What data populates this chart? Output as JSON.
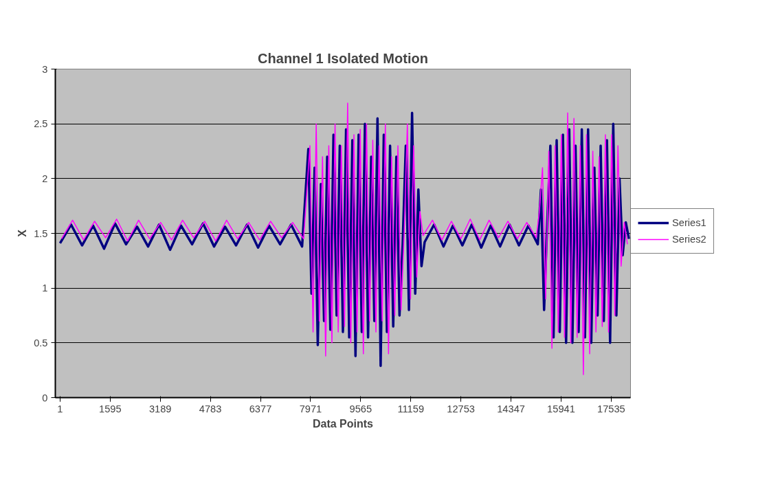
{
  "chart_data": {
    "type": "line",
    "title": "Channel 1 Isolated Motion",
    "xlabel": "Data Points",
    "ylabel": "X",
    "xlim": [
      -150,
      18150
    ],
    "xticks": [
      1,
      1595,
      3189,
      4783,
      6377,
      7971,
      9565,
      11159,
      12753,
      14347,
      15941,
      17535
    ],
    "ylim": [
      0,
      3
    ],
    "yticks": [
      0,
      0.5,
      1,
      1.5,
      2,
      2.5,
      3
    ],
    "grid": "y",
    "legend": "right",
    "marker": "none",
    "line_style": "solid",
    "series": [
      {
        "name": "Series1",
        "color": "#000080",
        "x": [
          1,
          351,
          701,
          1051,
          1401,
          1751,
          2101,
          2451,
          2801,
          3151,
          3501,
          3851,
          4201,
          4551,
          4901,
          5251,
          5601,
          5951,
          6301,
          6651,
          7001,
          7351,
          7701,
          7900,
          8000,
          8100,
          8200,
          8300,
          8400,
          8500,
          8600,
          8700,
          8800,
          8900,
          9000,
          9100,
          9200,
          9300,
          9400,
          9500,
          9600,
          9700,
          9800,
          9900,
          10000,
          10100,
          10200,
          10300,
          10400,
          10500,
          10600,
          10700,
          10800,
          10900,
          11000,
          11100,
          11200,
          11300,
          11400,
          11500,
          11600,
          11900,
          12200,
          12500,
          12800,
          13100,
          13400,
          13700,
          14000,
          14300,
          14600,
          14900,
          15200,
          15300,
          15400,
          15500,
          15600,
          15700,
          15800,
          15900,
          16000,
          16100,
          16200,
          16300,
          16400,
          16500,
          16600,
          16700,
          16800,
          16900,
          17000,
          17100,
          17200,
          17300,
          17400,
          17500,
          17600,
          17700,
          17800,
          17900,
          18000,
          18100
        ],
        "values": [
          1.41,
          1.58,
          1.39,
          1.57,
          1.36,
          1.59,
          1.4,
          1.56,
          1.38,
          1.58,
          1.35,
          1.57,
          1.4,
          1.59,
          1.38,
          1.56,
          1.39,
          1.58,
          1.37,
          1.57,
          1.4,
          1.58,
          1.38,
          2.27,
          0.95,
          2.1,
          0.48,
          1.95,
          0.7,
          2.2,
          0.62,
          2.4,
          0.75,
          2.3,
          0.6,
          2.45,
          0.55,
          2.35,
          0.38,
          2.4,
          0.6,
          2.5,
          0.55,
          2.2,
          0.7,
          2.55,
          0.29,
          2.4,
          0.6,
          2.3,
          0.65,
          2.2,
          0.75,
          1.4,
          2.3,
          0.8,
          2.6,
          0.95,
          1.9,
          1.2,
          1.42,
          1.58,
          1.38,
          1.57,
          1.39,
          1.58,
          1.37,
          1.57,
          1.38,
          1.58,
          1.39,
          1.57,
          1.4,
          1.9,
          0.8,
          1.6,
          2.3,
          0.55,
          2.35,
          0.6,
          2.4,
          0.5,
          2.45,
          0.5,
          2.3,
          0.6,
          2.45,
          0.55,
          2.45,
          0.5,
          2.1,
          0.75,
          2.3,
          0.7,
          2.35,
          0.5,
          2.5,
          0.75,
          2.0,
          1.3,
          1.6,
          1.45
        ]
      },
      {
        "name": "Series2",
        "color": "#ff00ff",
        "x": [
          50,
          400,
          750,
          1100,
          1450,
          1800,
          2150,
          2500,
          2850,
          3200,
          3550,
          3900,
          4250,
          4600,
          4950,
          5300,
          5650,
          6000,
          6350,
          6700,
          7050,
          7400,
          7750,
          7950,
          8050,
          8150,
          8250,
          8350,
          8450,
          8550,
          8650,
          8750,
          8850,
          8950,
          9050,
          9150,
          9250,
          9350,
          9450,
          9550,
          9650,
          9750,
          9850,
          9950,
          10050,
          10150,
          10250,
          10350,
          10450,
          10550,
          10650,
          10750,
          10850,
          10950,
          11050,
          11150,
          11250,
          11350,
          11450,
          11550,
          11850,
          12150,
          12450,
          12750,
          13050,
          13350,
          13650,
          13950,
          14250,
          14550,
          14850,
          15150,
          15250,
          15350,
          15450,
          15550,
          15650,
          15750,
          15850,
          15950,
          16050,
          16150,
          16250,
          16350,
          16450,
          16550,
          16650,
          16750,
          16850,
          16950,
          17050,
          17150,
          17250,
          17350,
          17450,
          17550,
          17650,
          17750,
          17850,
          17950,
          18050
        ],
        "values": [
          1.45,
          1.62,
          1.44,
          1.61,
          1.46,
          1.63,
          1.43,
          1.62,
          1.45,
          1.6,
          1.44,
          1.62,
          1.46,
          1.61,
          1.43,
          1.62,
          1.45,
          1.6,
          1.44,
          1.61,
          1.46,
          1.6,
          1.45,
          2.3,
          0.6,
          2.5,
          0.7,
          2.2,
          0.38,
          2.3,
          0.5,
          2.5,
          0.6,
          2.3,
          0.65,
          2.69,
          0.5,
          2.4,
          0.6,
          2.45,
          0.4,
          2.5,
          0.7,
          2.35,
          0.6,
          2.3,
          0.7,
          2.5,
          0.4,
          2.2,
          0.75,
          2.3,
          0.8,
          1.5,
          2.5,
          0.9,
          2.3,
          1.1,
          1.7,
          1.48,
          1.62,
          1.44,
          1.61,
          1.45,
          1.63,
          1.44,
          1.62,
          1.46,
          1.61,
          1.45,
          1.6,
          1.46,
          1.7,
          2.1,
          0.9,
          2.25,
          0.45,
          2.3,
          0.6,
          2.4,
          0.55,
          2.6,
          0.5,
          2.55,
          0.55,
          2.3,
          0.21,
          2.4,
          0.4,
          2.25,
          0.6,
          2.2,
          0.65,
          2.4,
          0.6,
          2.4,
          0.75,
          2.3,
          1.2,
          1.6,
          1.4
        ]
      }
    ]
  }
}
